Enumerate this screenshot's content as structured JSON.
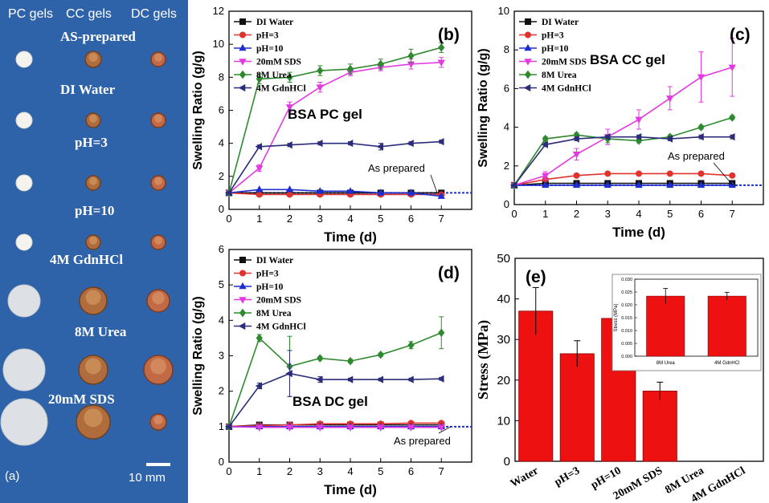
{
  "photo_panel": {
    "column_labels": [
      "PC gels",
      "CC gels",
      "DC gels"
    ],
    "row_labels": [
      "AS-prepared",
      "DI Water",
      "pH=3",
      "pH=10",
      "4M GdnHCl",
      "8M Urea",
      "20mM SDS"
    ],
    "panel_label": "(a)",
    "scale_bar": "10 mm",
    "colors": {
      "background": "#2f63a9",
      "pc_gel": "#f5f3ee",
      "cc_gel": "#b06c3c",
      "dc_gel": "#c26a45"
    }
  },
  "series_styles": [
    {
      "name": "DI Water",
      "color": "#111111",
      "marker": "square"
    },
    {
      "name": "pH=3",
      "color": "#e0332e",
      "marker": "circle"
    },
    {
      "name": "pH=10",
      "color": "#1d2fd1",
      "marker": "triangle-up"
    },
    {
      "name": "20mM SDS",
      "color": "#e23ae0",
      "marker": "triangle-down"
    },
    {
      "name": "8M Urea",
      "color": "#2f8a2f",
      "marker": "diamond"
    },
    {
      "name": "4M GdnHCl",
      "color": "#2b2d7a",
      "marker": "triangle-left"
    }
  ],
  "chart_data": [
    {
      "id": "b",
      "type": "line",
      "panel_label": "(b)",
      "title": "BSA PC gel",
      "xlabel": "Time (d)",
      "ylabel": "Swelling Ratio (g/g)",
      "xlim": [
        0,
        8
      ],
      "ylim": [
        0,
        12
      ],
      "xticks": [
        0,
        1,
        2,
        3,
        4,
        5,
        6,
        7
      ],
      "yticks": [
        0,
        2,
        4,
        6,
        8,
        10,
        12
      ],
      "legend_entries": [
        "DI Water",
        "pH=3",
        "pH=10",
        "20mM SDS",
        "8M Urea",
        "4M GdnHCl"
      ],
      "legend_display": [
        "DI Water",
        "pH=3",
        "pH=10",
        "20mM SDS",
        "8M Urea",
        "4M GdnHCl"
      ],
      "legend_position": "top-left",
      "reference": {
        "value": 1,
        "label": "As prepared"
      },
      "x": [
        0,
        1,
        2,
        3,
        4,
        5,
        6,
        7
      ],
      "series": [
        {
          "name": "DI Water",
          "values": [
            1.0,
            1.0,
            1.0,
            1.0,
            1.0,
            1.0,
            1.0,
            1.0
          ]
        },
        {
          "name": "pH=3",
          "values": [
            1.0,
            0.9,
            0.9,
            0.9,
            0.9,
            0.9,
            0.9,
            0.9
          ]
        },
        {
          "name": "pH=10",
          "values": [
            1.0,
            1.2,
            1.2,
            1.1,
            1.1,
            1.0,
            1.0,
            0.8
          ]
        },
        {
          "name": "20mM SDS",
          "values": [
            1.0,
            2.5,
            6.2,
            7.4,
            8.3,
            8.6,
            8.8,
            8.9
          ],
          "errors": [
            0,
            0.2,
            0.3,
            0.3,
            0.2,
            0.2,
            0.3,
            0.3
          ]
        },
        {
          "name": "8M Urea",
          "values": [
            1.0,
            7.9,
            8.0,
            8.4,
            8.5,
            8.8,
            9.3,
            9.8
          ],
          "errors": [
            0,
            0.3,
            0.3,
            0.3,
            0.3,
            0.3,
            0.4,
            0.3
          ]
        },
        {
          "name": "4M GdnHCl",
          "values": [
            1.0,
            3.8,
            3.9,
            4.0,
            4.0,
            3.8,
            4.0,
            4.1
          ],
          "errors": [
            0,
            0.1,
            0.1,
            0.1,
            0.1,
            0.2,
            0.1,
            0.1
          ]
        }
      ]
    },
    {
      "id": "c",
      "type": "line",
      "panel_label": "(c)",
      "title": "BSA CC gel",
      "xlabel": "Time (d)",
      "ylabel": "Swelling Ratio (g/g)",
      "xlim": [
        0,
        8
      ],
      "ylim": [
        0,
        10
      ],
      "xticks": [
        0,
        1,
        2,
        3,
        4,
        5,
        6,
        7
      ],
      "yticks": [
        0,
        2,
        4,
        6,
        8,
        10
      ],
      "legend_entries": [
        "DI Water",
        "pH=3",
        "pH=10",
        "20mM SDS",
        "8M Urea",
        "4M GdnHCl"
      ],
      "legend_display": [
        "DI Water",
        "pH=3",
        "pH=10",
        "20mM SDS",
        "8M Urea",
        "4M GdnHCl"
      ],
      "legend_position": "top-left",
      "reference": {
        "value": 1,
        "label": "As prepared"
      },
      "x": [
        0,
        1,
        2,
        3,
        4,
        5,
        6,
        7
      ],
      "series": [
        {
          "name": "DI Water",
          "values": [
            1.0,
            1.1,
            1.1,
            1.1,
            1.1,
            1.1,
            1.1,
            1.1
          ]
        },
        {
          "name": "pH=3",
          "values": [
            1.0,
            1.3,
            1.5,
            1.6,
            1.6,
            1.6,
            1.6,
            1.5
          ]
        },
        {
          "name": "pH=10",
          "values": [
            1.0,
            1.0,
            1.0,
            1.0,
            1.0,
            1.0,
            1.0,
            1.0
          ]
        },
        {
          "name": "20mM SDS",
          "values": [
            1.0,
            1.5,
            2.6,
            3.5,
            4.4,
            5.5,
            6.6,
            7.1
          ],
          "errors": [
            0,
            0.2,
            0.3,
            0.4,
            0.5,
            0.6,
            1.3,
            1.5
          ]
        },
        {
          "name": "8M Urea",
          "values": [
            1.0,
            3.4,
            3.6,
            3.4,
            3.3,
            3.5,
            4.0,
            4.5
          ],
          "errors": [
            0,
            0.1,
            0.1,
            0.2,
            0.1,
            0.1,
            0.1,
            0.1
          ]
        },
        {
          "name": "4M GdnHCl",
          "values": [
            1.0,
            3.1,
            3.4,
            3.5,
            3.5,
            3.4,
            3.5,
            3.5
          ],
          "errors": [
            0,
            0.1,
            0.1,
            0.1,
            0.1,
            0.1,
            0.1,
            0.1
          ]
        }
      ]
    },
    {
      "id": "d",
      "type": "line",
      "panel_label": "(d)",
      "title": "BSA DC gel",
      "xlabel": "Time (d)",
      "ylabel": "Swelling Ratio (g/g)",
      "xlim": [
        0,
        8
      ],
      "ylim": [
        0,
        6
      ],
      "xticks": [
        0,
        1,
        2,
        3,
        4,
        5,
        6,
        7
      ],
      "yticks": [
        0,
        1,
        2,
        3,
        4,
        5,
        6
      ],
      "legend_entries": [
        "DI Water",
        "pH=3",
        "pH=10",
        "20mM SDS",
        "8M Urea",
        "4M GdnHCl"
      ],
      "legend_display": [
        "DI Water",
        "pH=3",
        "pH=10",
        "20mM SDS",
        "8M Urea",
        "4M GdnHCl"
      ],
      "legend_position": "top-left",
      "reference": {
        "value": 1,
        "label": "As prepared"
      },
      "x": [
        0,
        1,
        2,
        3,
        4,
        5,
        6,
        7
      ],
      "series": [
        {
          "name": "DI Water",
          "values": [
            1.0,
            1.05,
            1.05,
            1.05,
            1.05,
            1.05,
            1.05,
            1.05
          ]
        },
        {
          "name": "pH=3",
          "values": [
            1.0,
            1.03,
            1.05,
            1.08,
            1.08,
            1.08,
            1.1,
            1.1
          ]
        },
        {
          "name": "pH=10",
          "values": [
            1.0,
            1.0,
            1.0,
            1.0,
            1.0,
            1.0,
            1.0,
            1.0
          ]
        },
        {
          "name": "20mM SDS",
          "values": [
            1.0,
            0.98,
            0.98,
            0.98,
            0.98,
            0.98,
            0.98,
            0.98
          ]
        },
        {
          "name": "8M Urea",
          "values": [
            1.0,
            3.5,
            2.7,
            2.93,
            2.85,
            3.03,
            3.3,
            3.65
          ],
          "errors": [
            0,
            0.1,
            0.85,
            0.05,
            0.05,
            0.05,
            0.1,
            0.45
          ]
        },
        {
          "name": "4M GdnHCl",
          "values": [
            1.0,
            2.15,
            2.5,
            2.33,
            2.33,
            2.33,
            2.33,
            2.35
          ],
          "errors": [
            0,
            0.08,
            0.65,
            0.08,
            0.04,
            0.04,
            0.04,
            0.04
          ]
        }
      ]
    },
    {
      "id": "e",
      "type": "bar",
      "panel_label": "(e)",
      "title": "",
      "xlabel": "",
      "ylabel": "Stress (MPa)",
      "ylim": [
        0,
        50
      ],
      "yticks": [
        0,
        10,
        20,
        30,
        40,
        50
      ],
      "categories": [
        "Water",
        "pH=3",
        "pH=10",
        "20mM SDS",
        "8M Urea",
        "4M GdnHCl"
      ],
      "values": [
        37.0,
        26.5,
        35.2,
        17.3,
        null,
        null
      ],
      "errors": [
        5.8,
        3.2,
        5.2,
        2.2,
        null,
        null
      ],
      "bar_color": "#ee1111",
      "inset": {
        "type": "bar",
        "ylabel": "Stress (MPa)",
        "ylim": [
          0,
          0.03
        ],
        "yticks": [
          "0.000",
          "0.005",
          "0.010",
          "0.015",
          "0.020",
          "0.025",
          "0.030"
        ],
        "categories": [
          "8M Urea",
          "4M GdnHCl"
        ],
        "values": [
          0.0234,
          0.0234
        ],
        "errors": [
          0.003,
          0.0015
        ]
      }
    }
  ]
}
